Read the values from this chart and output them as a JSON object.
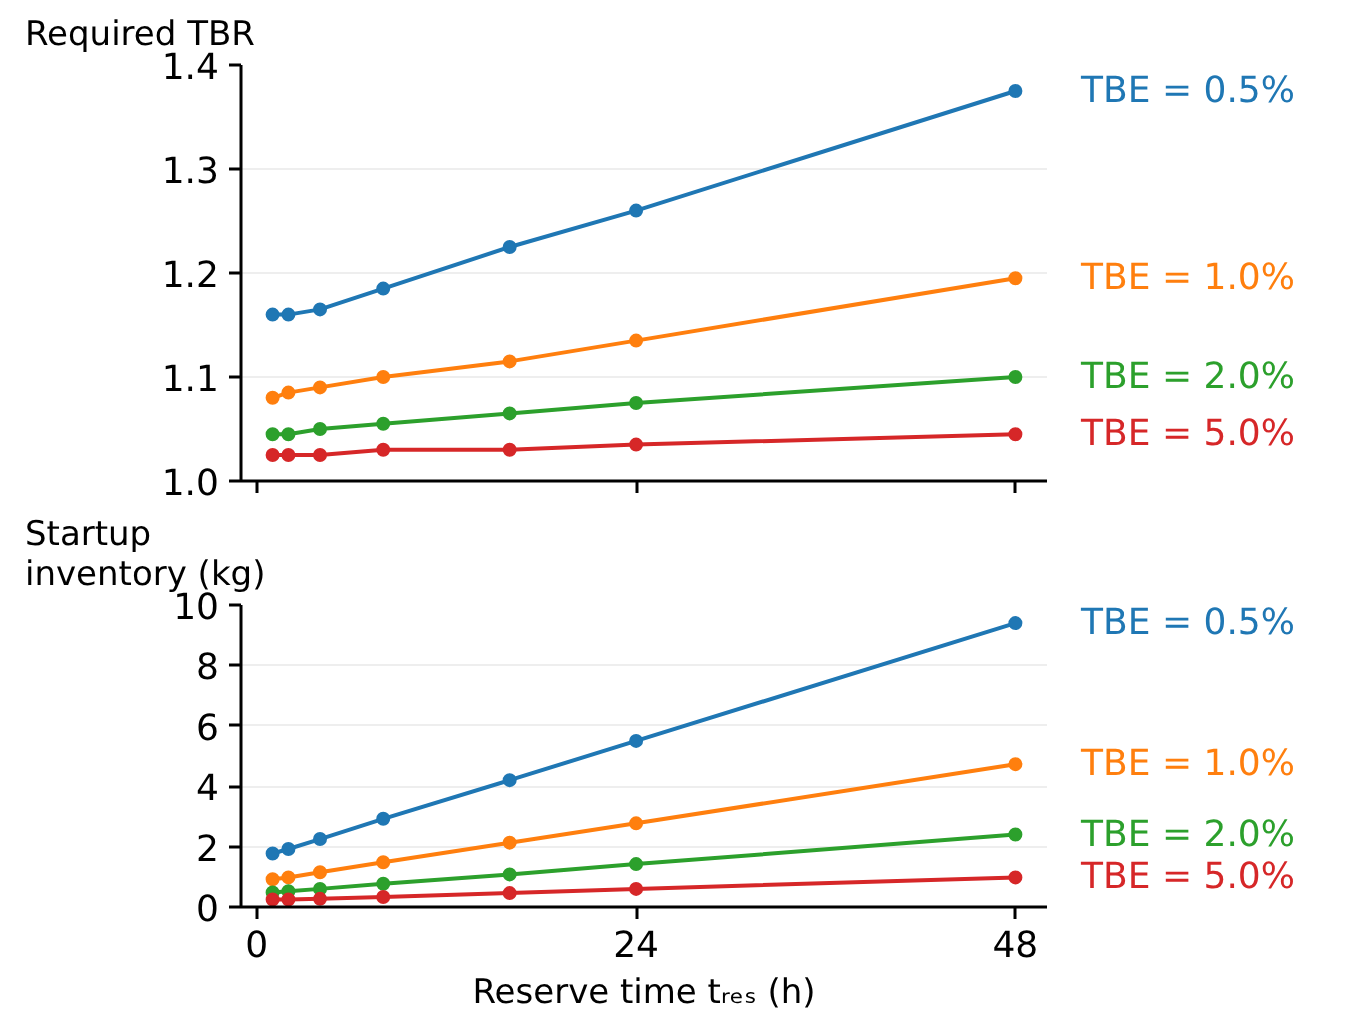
{
  "chart_data": [
    {
      "type": "line",
      "ylabel": "Required TBR",
      "x": [
        1,
        2,
        4,
        8,
        16,
        24,
        48
      ],
      "xlim": [
        -1,
        50
      ],
      "xticks": [
        0,
        24,
        48
      ],
      "ylim": [
        1.0,
        1.4
      ],
      "yticks": [
        {
          "value": 1.0,
          "label": "1.0"
        },
        {
          "value": 1.1,
          "label": "1.1"
        },
        {
          "value": 1.2,
          "label": "1.2"
        },
        {
          "value": 1.3,
          "label": "1.3"
        },
        {
          "value": 1.4,
          "label": "1.4"
        }
      ],
      "grid": "y",
      "legend": false,
      "marker": "circle",
      "line_style": "solid",
      "tick_labels": "y",
      "series": [
        {
          "name": "TBE = 0.5%",
          "color": "#1f77b4",
          "values": [
            1.16,
            1.16,
            1.165,
            1.185,
            1.225,
            1.26,
            1.375
          ]
        },
        {
          "name": "TBE = 1.0%",
          "color": "#ff7f0e",
          "values": [
            1.08,
            1.085,
            1.09,
            1.1,
            1.115,
            1.135,
            1.195
          ]
        },
        {
          "name": "TBE = 2.0%",
          "color": "#2ca02c",
          "values": [
            1.045,
            1.045,
            1.05,
            1.055,
            1.065,
            1.075,
            1.1
          ]
        },
        {
          "name": "TBE = 5.0%",
          "color": "#d62728",
          "values": [
            1.025,
            1.025,
            1.025,
            1.03,
            1.03,
            1.035,
            1.045
          ]
        }
      ]
    },
    {
      "type": "line",
      "ylabel": "Startup\ninventory (kg)",
      "xlabel": "Reserve time tᵣₑₛ (h)",
      "x": [
        1,
        2,
        4,
        8,
        16,
        24,
        48
      ],
      "xlim": [
        -1,
        50
      ],
      "xticks": [
        0,
        24,
        48
      ],
      "ylim": [
        0,
        10
      ],
      "yticks": [
        0,
        2,
        4,
        6,
        8,
        10
      ],
      "grid": "y",
      "legend": false,
      "marker": "circle",
      "line_style": "solid",
      "series": [
        {
          "name": "TBE = 0.5%",
          "color": "#1f77b4",
          "values": [
            1.77,
            1.92,
            2.25,
            2.92,
            4.2,
            5.5,
            9.4
          ]
        },
        {
          "name": "TBE = 1.0%",
          "color": "#ff7f0e",
          "values": [
            0.92,
            0.98,
            1.15,
            1.48,
            2.13,
            2.77,
            4.73
          ]
        },
        {
          "name": "TBE = 2.0%",
          "color": "#2ca02c",
          "values": [
            0.48,
            0.52,
            0.6,
            0.77,
            1.08,
            1.42,
            2.4
          ]
        },
        {
          "name": "TBE = 5.0%",
          "color": "#d62728",
          "values": [
            0.25,
            0.25,
            0.27,
            0.33,
            0.46,
            0.6,
            0.98
          ]
        }
      ]
    }
  ]
}
